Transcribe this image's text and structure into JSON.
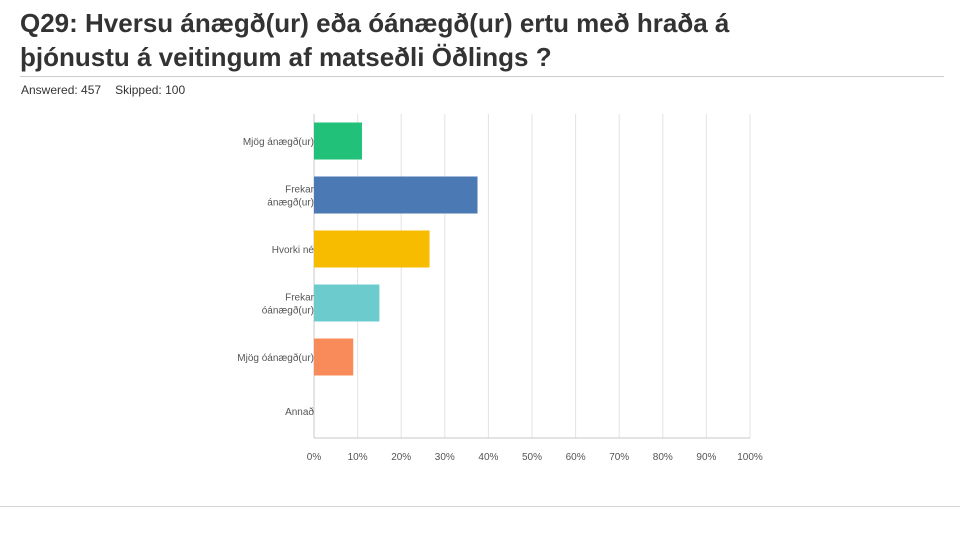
{
  "header": {
    "title_line1": "Q29: Hversu  ánægð(ur) eða óánægð(ur) ertu með hraða á",
    "title_line2": "þjónustu á veitingum af matseðli Öðlings ?"
  },
  "stats": {
    "answered": "Answered: 457",
    "skipped": "Skipped: 100"
  },
  "chart_data": {
    "type": "bar",
    "orientation": "horizontal",
    "categories": [
      [
        "Mjög ánægð(ur)"
      ],
      [
        "Frekar",
        "ánægð(ur)"
      ],
      [
        "Hvorki né"
      ],
      [
        "Frekar",
        "óánægð(ur)"
      ],
      [
        "Mjög óánægð(ur)"
      ],
      [
        "Annað"
      ]
    ],
    "values": [
      11,
      37.5,
      26.5,
      15,
      9,
      0
    ],
    "colors": [
      "#21c17a",
      "#4a79b4",
      "#f7bb00",
      "#6bcbcd",
      "#f98b5a",
      "#cccccc"
    ],
    "xlim": [
      0,
      100
    ],
    "x_ticks": [
      "0%",
      "10%",
      "20%",
      "30%",
      "40%",
      "50%",
      "60%",
      "70%",
      "80%",
      "90%",
      "100%"
    ],
    "grid": true
  }
}
